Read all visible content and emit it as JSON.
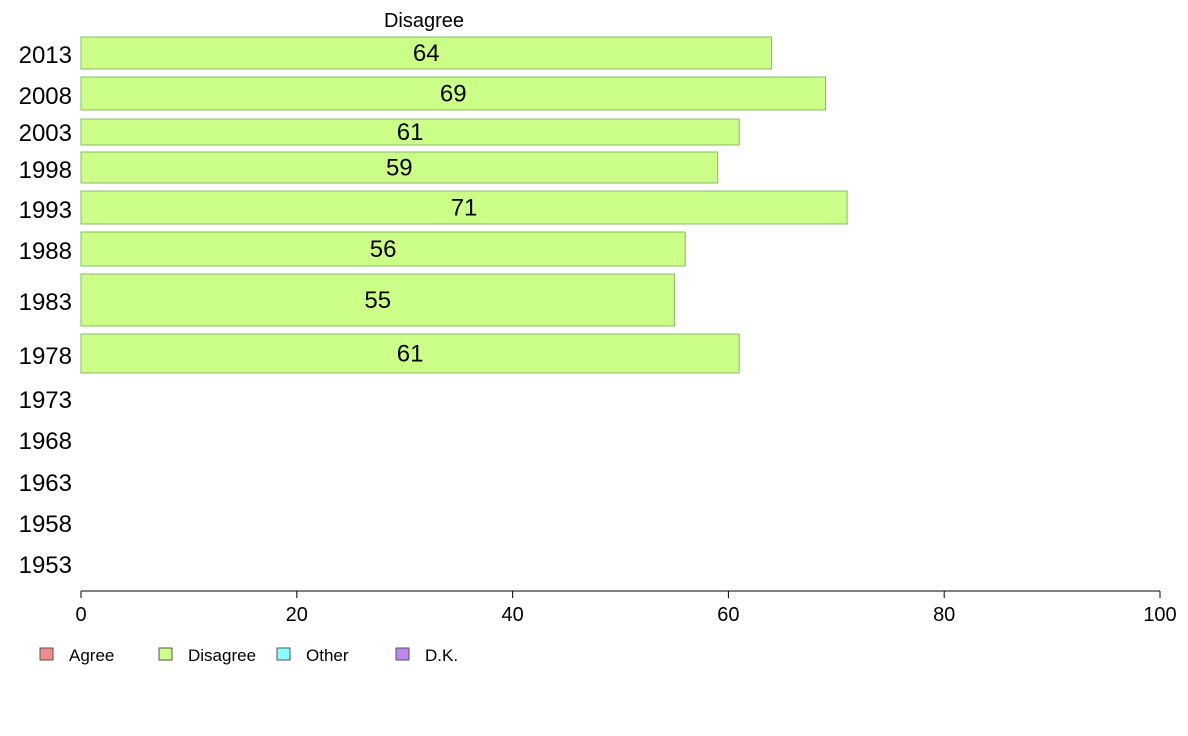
{
  "chart_data": {
    "type": "bar",
    "orientation": "horizontal",
    "series_title": "Disagree",
    "categories": [
      "2013",
      "2008",
      "2003",
      "1998",
      "1993",
      "1988",
      "1983",
      "1978",
      "1973",
      "1968",
      "1963",
      "1958",
      "1953"
    ],
    "series": [
      {
        "name": "Disagree",
        "values": [
          64,
          69,
          61,
          59,
          71,
          56,
          55,
          61,
          null,
          null,
          null,
          null,
          null
        ]
      }
    ],
    "data_labels": [
      "64",
      "69",
      "61",
      "59",
      "71",
      "56",
      "55",
      "61"
    ],
    "xlim": [
      0,
      100
    ],
    "x_ticks": [
      0,
      20,
      40,
      60,
      80,
      100
    ],
    "grid": false,
    "legend": {
      "placement": "bottom-left",
      "entries": [
        {
          "label": "Agree",
          "color": "#f28b8b"
        },
        {
          "label": "Disagree",
          "color": "#ccff88"
        },
        {
          "label": "Other",
          "color": "#88ffff"
        },
        {
          "label": "D.K.",
          "color": "#bb88ee"
        }
      ]
    },
    "colors": {
      "bar_fill": "#ccff88",
      "bar_stroke": "#88bb66",
      "axis": "#000000"
    }
  }
}
